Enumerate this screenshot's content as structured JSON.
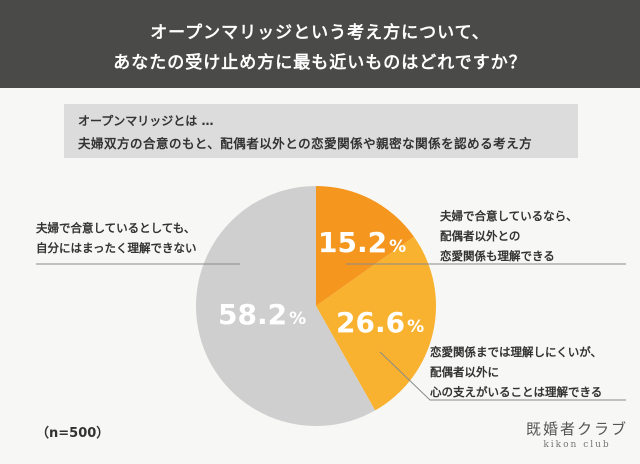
{
  "header": {
    "line1": "オープンマリッジという考え方について、",
    "line2": "あなたの受け止め方に最も近いものはどれですか？"
  },
  "definition": {
    "title": "オープンマリッジとは …",
    "body": "夫婦双方の合意のもと、配偶者以外との恋愛関係や親密な関係を認める考え方"
  },
  "sample_size": "（n=500）",
  "logo": {
    "jp": "既婚者クラブ",
    "en": "kikon club"
  },
  "colors": {
    "slice1": "#f5961f",
    "slice2": "#f8b230",
    "slice3": "#cfcfcf",
    "header_bg": "#4a4a48"
  },
  "chart_data": {
    "type": "pie",
    "unit": "%",
    "slices": [
      {
        "label_lines": [
          "夫婦で合意しているなら、",
          "配偶者以外との",
          "恋愛関係も理解できる"
        ],
        "value": 15.2,
        "value_text": "15.2",
        "color": "#f5961f"
      },
      {
        "label_lines": [
          "恋愛関係までは理解しにくいが、",
          "配偶者以外に",
          "心の支えがいることは理解できる"
        ],
        "value": 26.6,
        "value_text": "26.6",
        "color": "#f8b230"
      },
      {
        "label_lines": [
          "夫婦で合意しているとしても、",
          "自分にはまったく理解できない"
        ],
        "value": 58.2,
        "value_text": "58.2",
        "color": "#cfcfcf"
      }
    ]
  }
}
